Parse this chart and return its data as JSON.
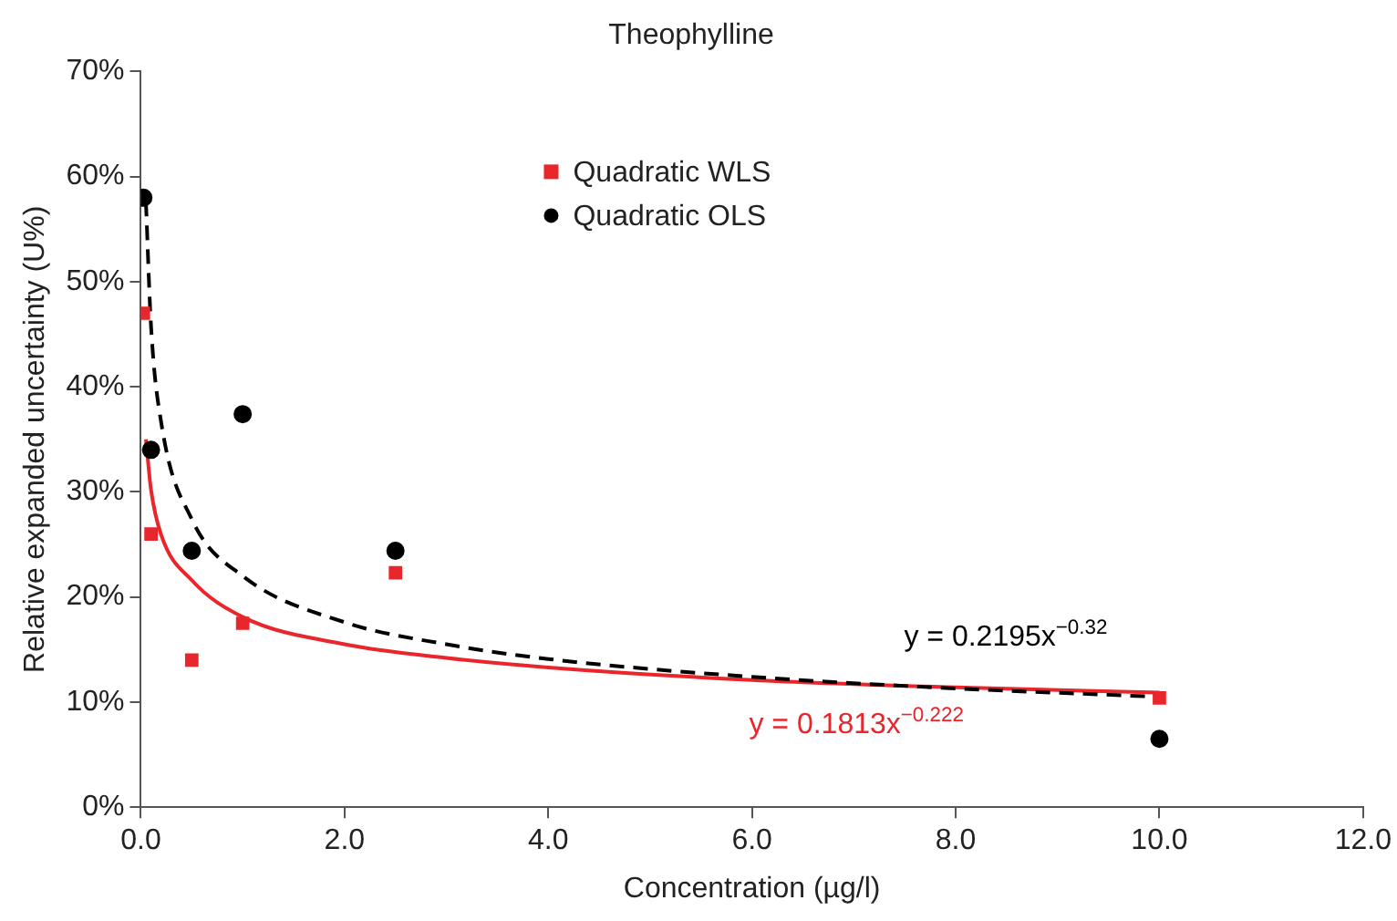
{
  "chart_data": {
    "type": "scatter",
    "title": "Theophylline",
    "xlabel": "Concentration (µg/l)",
    "ylabel": "Relative expanded uncertainty (U%)",
    "xlim": [
      0,
      12
    ],
    "ylim": [
      0,
      70
    ],
    "xticks": [
      {
        "value": 0,
        "label": "0.0"
      },
      {
        "value": 2,
        "label": "2.0"
      },
      {
        "value": 4,
        "label": "4.0"
      },
      {
        "value": 6,
        "label": "6.0"
      },
      {
        "value": 8,
        "label": "8.0"
      },
      {
        "value": 10,
        "label": "10.0"
      },
      {
        "value": 12,
        "label": "12.0"
      }
    ],
    "yticks": [
      {
        "value": 0,
        "label": "0%"
      },
      {
        "value": 10,
        "label": "10%"
      },
      {
        "value": 20,
        "label": "20%"
      },
      {
        "value": 30,
        "label": "30%"
      },
      {
        "value": 40,
        "label": "40%"
      },
      {
        "value": 50,
        "label": "50%"
      },
      {
        "value": 60,
        "label": "60%"
      },
      {
        "value": 70,
        "label": "70%"
      }
    ],
    "grid": false,
    "legend": "top",
    "series": [
      {
        "name": "Quadratic WLS",
        "marker": "square",
        "color": "#e8262b",
        "x": [
          0.025,
          0.1,
          0.5,
          1,
          2.5,
          10
        ],
        "values": [
          47,
          26,
          14,
          17.5,
          22.3,
          10.4
        ]
      },
      {
        "name": "Quadratic OLS",
        "marker": "circle",
        "color": "#000000",
        "x": [
          0.025,
          0.1,
          0.5,
          1,
          2.5,
          10
        ],
        "values": [
          58,
          34,
          24.4,
          37.4,
          24.4,
          6.5
        ]
      },
      {
        "type": "line",
        "marker": "none",
        "line_style": "dashed",
        "color": "#000000",
        "x": [
          0.05,
          0.1,
          0.2,
          0.5,
          1,
          2,
          3,
          4,
          6,
          8,
          10
        ],
        "values": [
          57.6,
          45.8,
          36.6,
          27.4,
          22,
          17.6,
          15.5,
          14.1,
          12.4,
          11.3,
          10.5
        ]
      },
      {
        "type": "line",
        "marker": "none",
        "line_style": "solid",
        "color": "#e8262b",
        "x": [
          0.05,
          0.1,
          0.2,
          0.5,
          1,
          2,
          3,
          4,
          6,
          8,
          10
        ],
        "values": [
          35,
          30.2,
          25.9,
          21.6,
          18.1,
          15.5,
          14.2,
          13.3,
          12.1,
          11.4,
          10.9
        ]
      }
    ],
    "annotations": [
      "y = 0.2195x$^{−0.32}$",
      "y = 0.1813x$^{−0.222}$"
    ]
  }
}
